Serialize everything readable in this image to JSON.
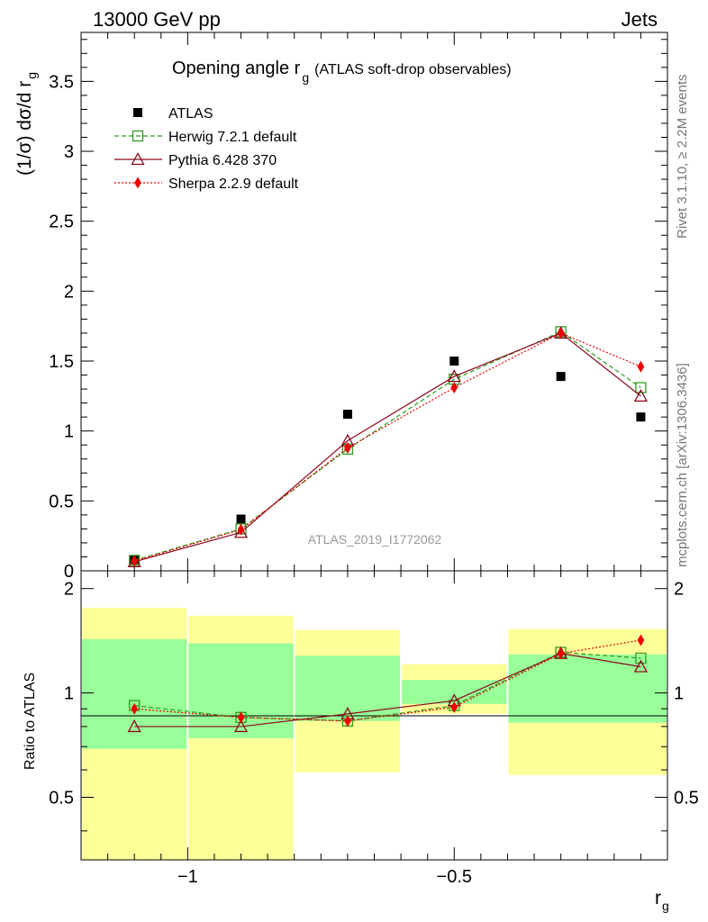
{
  "header": {
    "left_label": "13000 GeV pp",
    "right_label": "Jets"
  },
  "side_labels": {
    "rivet": "Rivet 3.1.10, ≥ 2.2M events",
    "mcplots": "mcplots.cern.ch [arXiv:1306.3436]"
  },
  "chart_data": [
    {
      "type": "line",
      "title": "Opening angle r",
      "title_subscript": "g",
      "subtitle": "(ATLAS soft-drop observables)",
      "watermark": "ATLAS_2019_I1772062",
      "ylabel": "(1/σ) dσ/d r",
      "ylabel_subscript": "g",
      "xlim": [
        -1.2,
        -0.1
      ],
      "ylim": [
        0,
        3.85
      ],
      "yticks": [
        0,
        0.5,
        1,
        1.5,
        2,
        2.5,
        3,
        3.5
      ],
      "ytick_labels": [
        "0",
        "0.5",
        "1",
        "1.5",
        "2",
        "2.5",
        "3",
        "3.5"
      ],
      "legend_position": "top-left",
      "x": [
        -1.1,
        -0.9,
        -0.7,
        -0.5,
        -0.3,
        -0.15
      ],
      "series": [
        {
          "name": "ATLAS",
          "color": "#000000",
          "marker": "filled-square",
          "line": "none",
          "values": [
            0.08,
            0.37,
            1.12,
            1.5,
            1.39,
            1.1
          ]
        },
        {
          "name": "Herwig 7.2.1 default",
          "color": "#2c9c1c",
          "marker": "open-square",
          "line": "dashed",
          "values": [
            0.075,
            0.3,
            0.87,
            1.37,
            1.71,
            1.31
          ]
        },
        {
          "name": "Pythia 6.428 370",
          "color": "#8b0a1e",
          "marker": "open-triangle",
          "line": "solid",
          "values": [
            0.065,
            0.275,
            0.93,
            1.39,
            1.7,
            1.25
          ]
        },
        {
          "name": "Sherpa 2.2.9 default",
          "color": "#ee0000",
          "marker": "filled-diamond",
          "line": "dotted",
          "values": [
            0.07,
            0.295,
            0.88,
            1.31,
            1.7,
            1.46
          ]
        }
      ]
    },
    {
      "type": "line",
      "ylabel": "Ratio to ATLAS",
      "xlabel": "r",
      "xlabel_subscript": "g",
      "xlim": [
        -1.2,
        -0.1
      ],
      "xticks": [
        -1,
        -0.5
      ],
      "xtick_labels": [
        "−1",
        "−0.5"
      ],
      "ylim": [
        0.33,
        2.25
      ],
      "yticks": [
        0.5,
        1,
        2
      ],
      "ytick_labels": [
        "0.5",
        "1",
        "2"
      ],
      "bands": [
        {
          "x": [
            -1.2,
            -1.0
          ],
          "outer": [
            0.33,
            1.76
          ],
          "inner": [
            0.69,
            1.43
          ]
        },
        {
          "x": [
            -1.0,
            -0.8
          ],
          "outer": [
            0.33,
            1.67
          ],
          "inner": [
            0.74,
            1.39
          ]
        },
        {
          "x": [
            -0.8,
            -0.6
          ],
          "outer": [
            0.59,
            1.52
          ],
          "inner": [
            0.83,
            1.28
          ]
        },
        {
          "x": [
            -0.6,
            -0.4
          ],
          "outer": [
            0.87,
            1.21
          ],
          "inner": [
            0.93,
            1.09
          ]
        },
        {
          "x": [
            -0.4,
            -0.1
          ],
          "outer": [
            0.58,
            1.53
          ],
          "inner": [
            0.82,
            1.29
          ]
        }
      ],
      "band_colors": {
        "outer": "#ffff99",
        "inner": "#99ff99"
      },
      "x": [
        -1.1,
        -0.9,
        -0.7,
        -0.5,
        -0.3,
        -0.15
      ],
      "series": [
        {
          "name": "Herwig 7.2.1 default",
          "color": "#2c9c1c",
          "marker": "open-square",
          "line": "dashed",
          "values": [
            0.92,
            0.85,
            0.83,
            0.92,
            1.31,
            1.26
          ]
        },
        {
          "name": "Pythia 6.428 370",
          "color": "#8b0a1e",
          "marker": "open-triangle",
          "line": "solid",
          "values": [
            0.8,
            0.8,
            0.87,
            0.95,
            1.3,
            1.19
          ]
        },
        {
          "name": "Sherpa 2.2.9 default",
          "color": "#ee0000",
          "marker": "filled-diamond",
          "line": "dotted",
          "values": [
            0.9,
            0.85,
            0.83,
            0.91,
            1.3,
            1.42
          ]
        }
      ]
    }
  ]
}
